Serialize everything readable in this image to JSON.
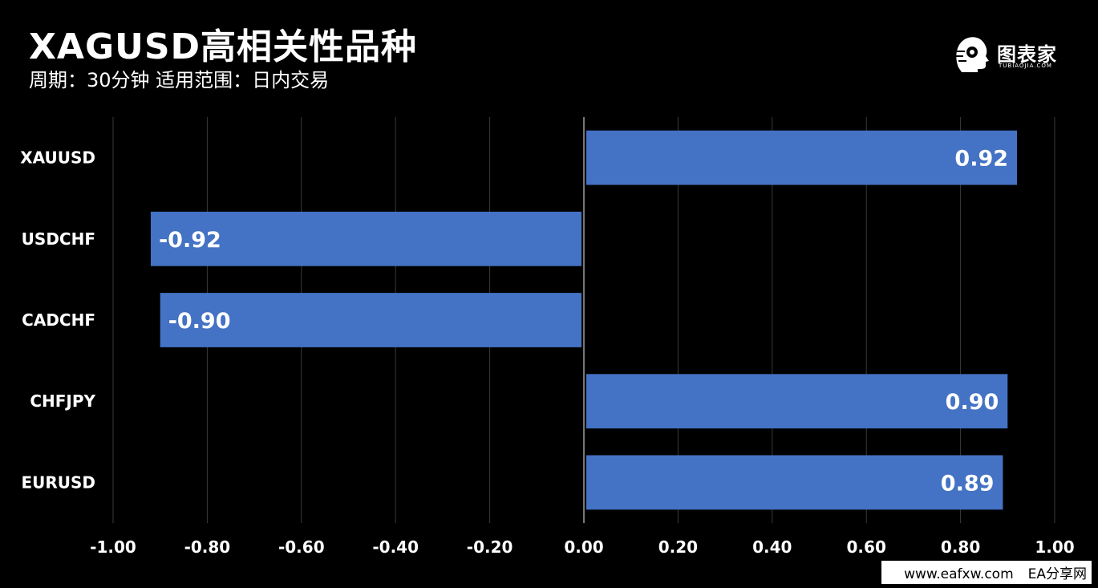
{
  "header": {
    "title": "XAGUSD高相关性品种",
    "subtitle": "周期：30分钟  适用范围：日内交易"
  },
  "logo": {
    "text": "图表家",
    "subtext": "TUBIAOJIA.COM",
    "icon": "head-profile-icon"
  },
  "watermark": {
    "url": "www.eafxw.com",
    "site": "EA分享网"
  },
  "colors": {
    "background": "#000000",
    "bar": "#4472c4",
    "grid": "#3a3a3a",
    "text": "#ffffff"
  },
  "chart_data": {
    "type": "bar",
    "orientation": "horizontal",
    "categories": [
      "XAUUSD",
      "USDCHF",
      "CADCHF",
      "CHFJPY",
      "EURUSD"
    ],
    "values": [
      0.92,
      -0.92,
      -0.9,
      0.9,
      0.89
    ],
    "value_labels": [
      "0.92",
      "-0.92",
      "-0.90",
      "0.90",
      "0.89"
    ],
    "xlim": [
      -1.0,
      1.0
    ],
    "x_ticks": [
      -1.0,
      -0.8,
      -0.6,
      -0.4,
      -0.2,
      0.0,
      0.2,
      0.4,
      0.6,
      0.8,
      1.0
    ],
    "x_tick_labels": [
      "-1.00",
      "-0.80",
      "-0.60",
      "-0.40",
      "-0.20",
      "0.00",
      "0.20",
      "0.40",
      "0.60",
      "0.80",
      "1.00"
    ],
    "grid": true,
    "legend": "none"
  }
}
